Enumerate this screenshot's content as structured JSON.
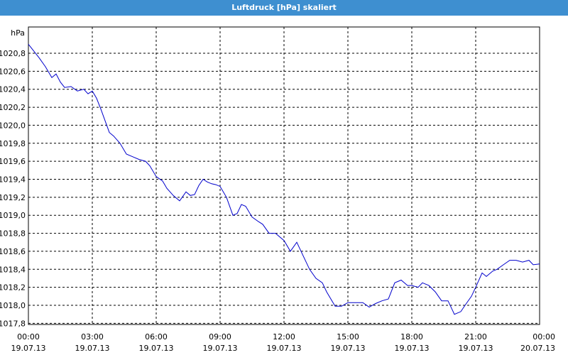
{
  "window": {
    "title": "Luftdruck [hPa] skaliert"
  },
  "chart_data": {
    "type": "line",
    "title": "Luftdruck [hPa] skaliert",
    "ylabel": "hPa",
    "xlabel": "",
    "ylim": [
      1017.75,
      1021.0
    ],
    "xlim_hours": [
      0,
      24
    ],
    "grid": true,
    "line_color": "#0000cc",
    "y_ticks": [
      "1020,8",
      "1020,6",
      "1020,4",
      "1020,2",
      "1020,0",
      "1019,8",
      "1019,6",
      "1019,4",
      "1019,2",
      "1019,0",
      "1018,8",
      "1018,6",
      "1018,4",
      "1018,2",
      "1018,0",
      "1017,8"
    ],
    "y_tick_values": [
      1020.8,
      1020.6,
      1020.4,
      1020.2,
      1020.0,
      1019.8,
      1019.6,
      1019.4,
      1019.2,
      1019.0,
      1018.8,
      1018.6,
      1018.4,
      1018.2,
      1018.0,
      1017.8
    ],
    "x_ticks": [
      {
        "time": "00:00",
        "date": "19.07.13"
      },
      {
        "time": "03:00",
        "date": "19.07.13"
      },
      {
        "time": "06:00",
        "date": "19.07.13"
      },
      {
        "time": "09:00",
        "date": "19.07.13"
      },
      {
        "time": "12:00",
        "date": "19.07.13"
      },
      {
        "time": "15:00",
        "date": "19.07.13"
      },
      {
        "time": "18:00",
        "date": "19.07.13"
      },
      {
        "time": "21:00",
        "date": "19.07.13"
      },
      {
        "time": "00:00",
        "date": "20.07.13"
      }
    ],
    "series": [
      {
        "x": [
          0,
          0.5,
          0.8,
          1.1,
          1.3,
          1.5,
          1.7,
          2.0,
          2.3,
          2.6,
          2.8,
          3.0,
          3.2,
          3.4,
          3.6,
          3.8,
          4.0,
          4.3,
          4.6,
          4.9,
          5.2,
          5.5,
          5.7,
          6.0,
          6.3,
          6.5,
          6.8,
          7.1,
          7.4,
          7.6,
          7.8,
          8.0,
          8.2,
          8.4,
          8.6,
          8.8,
          9.0,
          9.3,
          9.6,
          9.8,
          10.0,
          10.2,
          10.5,
          10.8,
          11.0,
          11.3,
          11.6,
          12.0,
          12.3,
          12.6,
          12.9,
          13.2,
          13.5,
          13.8,
          14.0,
          14.4,
          14.7,
          15.0,
          15.4,
          15.7,
          16.0,
          16.3,
          16.6,
          16.9,
          17.2,
          17.5,
          17.8,
          18.0,
          18.3,
          18.5,
          18.8,
          19.1,
          19.4,
          19.7,
          20.0,
          20.3,
          20.5,
          20.8,
          21.0,
          21.3,
          21.5,
          21.8,
          22.0,
          22.3,
          22.6,
          22.9,
          23.2,
          23.5,
          23.7,
          24.0
        ],
        "y": [
          1020.9,
          1020.75,
          1020.65,
          1020.53,
          1020.57,
          1020.48,
          1020.42,
          1020.43,
          1020.38,
          1020.4,
          1020.35,
          1020.38,
          1020.3,
          1020.18,
          1020.05,
          1019.92,
          1019.88,
          1019.8,
          1019.68,
          1019.65,
          1019.62,
          1019.6,
          1019.55,
          1019.43,
          1019.38,
          1019.3,
          1019.22,
          1019.16,
          1019.26,
          1019.22,
          1019.23,
          1019.33,
          1019.4,
          1019.37,
          1019.35,
          1019.34,
          1019.32,
          1019.2,
          1019.0,
          1019.02,
          1019.12,
          1019.1,
          1018.98,
          1018.93,
          1018.9,
          1018.8,
          1018.8,
          1018.72,
          1018.6,
          1018.7,
          1018.55,
          1018.4,
          1018.3,
          1018.25,
          1018.15,
          1017.99,
          1017.99,
          1018.03,
          1018.03,
          1018.03,
          1017.98,
          1018.02,
          1018.05,
          1018.07,
          1018.25,
          1018.28,
          1018.22,
          1018.22,
          1018.2,
          1018.25,
          1018.22,
          1018.15,
          1018.05,
          1018.05,
          1017.9,
          1017.93,
          1018.0,
          1018.1,
          1018.2,
          1018.36,
          1018.32,
          1018.38,
          1018.4,
          1018.45,
          1018.5,
          1018.5,
          1018.48,
          1018.5,
          1018.45,
          1018.46
        ]
      }
    ]
  }
}
